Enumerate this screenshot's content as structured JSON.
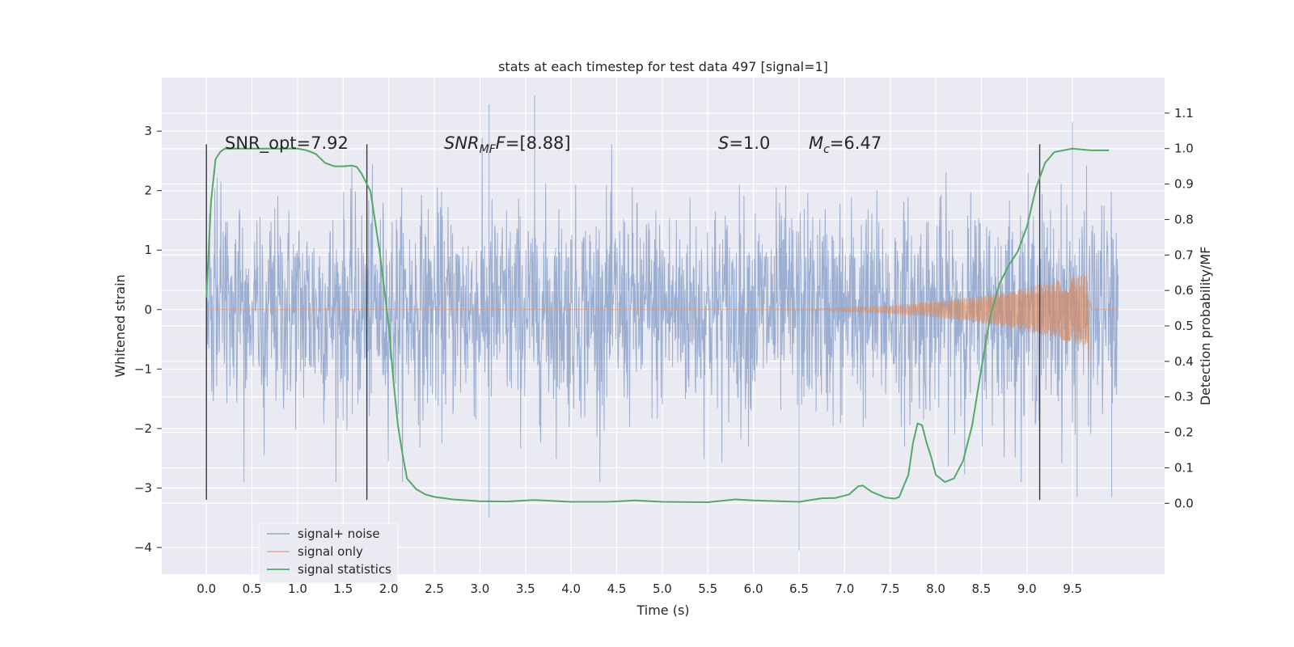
{
  "chart_data": {
    "type": "line",
    "title": "stats at each timestep for test data 497 [signal=1]",
    "xlabel": "Time (s)",
    "ylabel": "Whitened strain",
    "y2label": "Detection probability/MF",
    "xlim": [
      -0.49,
      10.51
    ],
    "ylim": [
      -4.45,
      3.9
    ],
    "y2lim": [
      -0.2,
      1.2
    ],
    "x_ticks": [
      0.0,
      0.5,
      1.0,
      1.5,
      2.0,
      2.5,
      3.0,
      3.5,
      4.0,
      4.5,
      5.0,
      5.5,
      6.0,
      6.5,
      7.0,
      7.5,
      8.0,
      8.5,
      9.0,
      9.5
    ],
    "y_ticks": [
      -4,
      -3,
      -2,
      -1,
      0,
      1,
      2,
      3
    ],
    "y2_ticks": [
      0.0,
      0.1,
      0.2,
      0.3,
      0.4,
      0.5,
      0.6,
      0.7,
      0.8,
      0.9,
      1.0,
      1.1
    ],
    "grid": true,
    "legend_position": "bottom-left",
    "annotations": {
      "snr_opt": "SNR_opt=7.92",
      "snr_mf_main": "SNR",
      "snr_mf_sub": "MF",
      "snr_mf_rest": "=[8.88]",
      "s_main": "S",
      "s_rest": "=1.0",
      "mc_main": "M",
      "mc_sub": "c",
      "mc_rest": "=6.47"
    },
    "vertical_lines": [
      0.0,
      1.76,
      9.14
    ],
    "series": [
      {
        "name": "signal+ noise",
        "color": "#4c72b0",
        "axis": "left",
        "x_range": [
          0.0,
          10.0
        ],
        "approx_abs_amplitude": 1.6,
        "approx_peaks": [
          [
            3.1,
            3.45
          ],
          [
            3.6,
            3.6
          ],
          [
            9.5,
            3.15
          ],
          [
            3.1,
            -3.5
          ],
          [
            6.5,
            -4.05
          ],
          [
            9.55,
            -3.15
          ],
          [
            9.93,
            -3.15
          ]
        ]
      },
      {
        "name": "signal only",
        "color": "#dd8452",
        "axis": "left",
        "x_range": [
          0.0,
          10.0
        ],
        "chirp_start": 5.5,
        "merger_time": 9.67,
        "peak_amplitude": 0.63
      },
      {
        "name": "signal statistics",
        "color": "#55a868",
        "axis": "right",
        "x": [
          0.0,
          0.05,
          0.1,
          0.15,
          0.2,
          0.3,
          0.5,
          0.8,
          1.0,
          1.1,
          1.2,
          1.3,
          1.4,
          1.5,
          1.6,
          1.65,
          1.7,
          1.8,
          1.9,
          2.0,
          2.05,
          2.1,
          2.15,
          2.2,
          2.3,
          2.4,
          2.5,
          2.7,
          3.0,
          3.3,
          3.6,
          4.0,
          4.4,
          4.7,
          5.0,
          5.5,
          5.8,
          6.0,
          6.5,
          6.75,
          6.9,
          7.05,
          7.15,
          7.2,
          7.3,
          7.45,
          7.55,
          7.6,
          7.65,
          7.7,
          7.75,
          7.8,
          7.85,
          7.9,
          7.95,
          8.0,
          8.1,
          8.2,
          8.3,
          8.4,
          8.5,
          8.6,
          8.7,
          8.8,
          8.9,
          9.0,
          9.1,
          9.2,
          9.3,
          9.4,
          9.5,
          9.7,
          9.9
        ],
        "y": [
          0.58,
          0.85,
          0.97,
          0.99,
          1.0,
          1.0,
          1.0,
          1.0,
          1.0,
          0.995,
          0.985,
          0.96,
          0.95,
          0.95,
          0.952,
          0.948,
          0.93,
          0.88,
          0.71,
          0.5,
          0.35,
          0.22,
          0.14,
          0.07,
          0.04,
          0.025,
          0.018,
          0.011,
          0.006,
          0.005,
          0.009,
          0.004,
          0.004,
          0.008,
          0.004,
          0.003,
          0.011,
          0.008,
          0.004,
          0.014,
          0.015,
          0.025,
          0.048,
          0.05,
          0.032,
          0.016,
          0.013,
          0.018,
          0.05,
          0.08,
          0.17,
          0.225,
          0.22,
          0.17,
          0.13,
          0.08,
          0.06,
          0.07,
          0.12,
          0.22,
          0.38,
          0.53,
          0.62,
          0.67,
          0.71,
          0.78,
          0.89,
          0.96,
          0.99,
          0.995,
          1.0,
          0.995,
          0.995
        ]
      }
    ]
  }
}
